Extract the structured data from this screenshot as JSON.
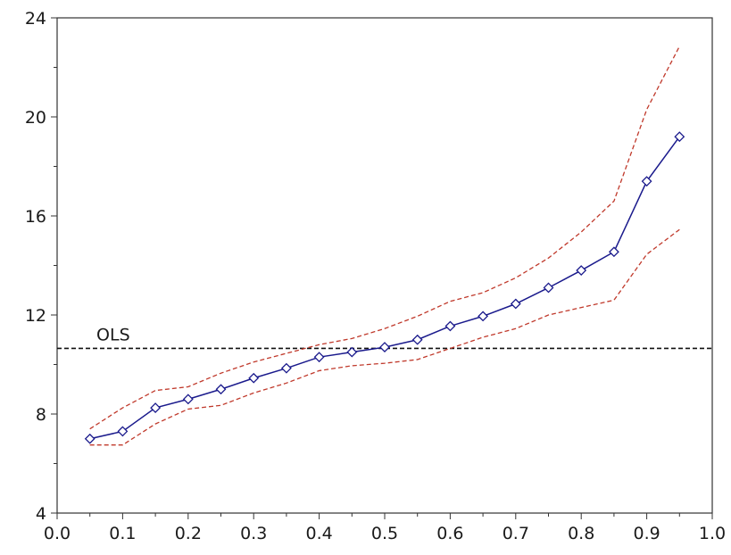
{
  "chart_data": {
    "type": "line",
    "title": "",
    "xlabel": "",
    "ylabel": "",
    "xlim": [
      0.0,
      1.0
    ],
    "ylim": [
      4,
      24
    ],
    "x_ticks": [
      0.0,
      0.1,
      0.2,
      0.3,
      0.4,
      0.5,
      0.6,
      0.7,
      0.8,
      0.9,
      1.0
    ],
    "x_tick_labels": [
      "0.0",
      "0.1",
      "0.2",
      "0.3",
      "0.4",
      "0.5",
      "0.6",
      "0.7",
      "0.8",
      "0.9",
      "1.0"
    ],
    "y_ticks": [
      4,
      8,
      12,
      16,
      20,
      24
    ],
    "y_tick_labels": [
      "4",
      "8",
      "12",
      "16",
      "20",
      "24"
    ],
    "grid": false,
    "x": [
      0.05,
      0.1,
      0.15,
      0.2,
      0.25,
      0.3,
      0.35,
      0.4,
      0.45,
      0.5,
      0.55,
      0.6,
      0.65,
      0.7,
      0.75,
      0.8,
      0.85,
      0.9,
      0.95
    ],
    "series": [
      {
        "role": "estimate",
        "color": "#1a1a8c",
        "marker": "diamond",
        "values": [
          7.0,
          7.3,
          8.25,
          8.6,
          9.0,
          9.45,
          9.85,
          10.3,
          10.5,
          10.7,
          11.0,
          11.55,
          11.95,
          12.45,
          13.1,
          13.8,
          14.55,
          17.4,
          19.2
        ]
      },
      {
        "role": "upper-band",
        "color": "#c0392b",
        "dash": "dashed",
        "values": [
          7.4,
          8.25,
          8.95,
          9.1,
          9.65,
          10.1,
          10.45,
          10.8,
          11.05,
          11.45,
          11.95,
          12.55,
          12.9,
          13.5,
          14.3,
          15.35,
          16.6,
          20.3,
          22.85
        ]
      },
      {
        "role": "lower-band",
        "color": "#c0392b",
        "dash": "dashed",
        "values": [
          6.75,
          6.75,
          7.6,
          8.2,
          8.35,
          8.85,
          9.25,
          9.75,
          9.95,
          10.05,
          10.2,
          10.65,
          11.1,
          11.45,
          12.0,
          12.3,
          12.6,
          14.45,
          15.45
        ]
      }
    ],
    "reference_lines": [
      {
        "label": "OLS",
        "y": 10.65,
        "color": "#111111",
        "dash": "dashed"
      }
    ]
  }
}
